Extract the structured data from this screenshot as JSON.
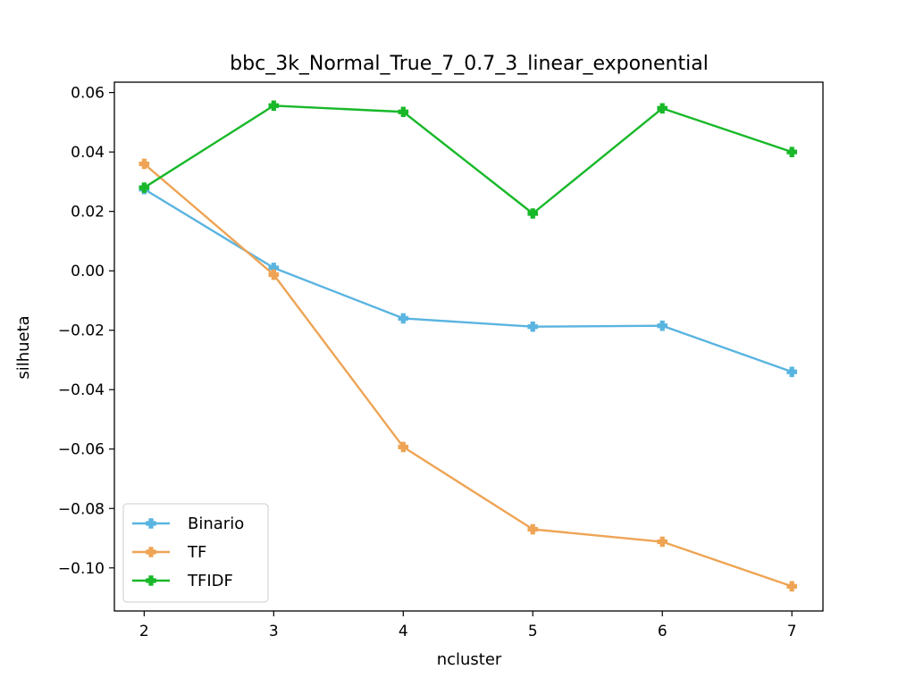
{
  "chart_data": {
    "type": "line",
    "title": "bbc_3k_Normal_True_7_0.7_3_linear_exponential",
    "xlabel": "ncluster",
    "ylabel": "silhueta",
    "x": [
      2,
      3,
      4,
      5,
      6,
      7
    ],
    "xlim": [
      1.77,
      7.24
    ],
    "ylim": [
      -0.1145,
      0.0635
    ],
    "x_ticks": [
      2,
      3,
      4,
      5,
      6,
      7
    ],
    "x_tick_labels": [
      "2",
      "3",
      "4",
      "5",
      "6",
      "7"
    ],
    "y_ticks": [
      0.06,
      0.04,
      0.02,
      0.0,
      -0.02,
      -0.04,
      -0.06,
      -0.08,
      -0.1
    ],
    "y_tick_labels": [
      "0.06",
      "0.04",
      "0.02",
      "0.00",
      "−0.02",
      "−0.04",
      "−0.06",
      "−0.08",
      "−0.10"
    ],
    "grid": false,
    "legend_position": "lower-left",
    "series": [
      {
        "name": "Binario",
        "color": "#5ab4e0",
        "values": [
          0.0275,
          0.001,
          -0.016,
          -0.0188,
          -0.0185,
          -0.034
        ]
      },
      {
        "name": "TF",
        "color": "#eea454",
        "values": [
          0.036,
          -0.0013,
          -0.0593,
          -0.087,
          -0.0912,
          -0.1062
        ]
      },
      {
        "name": "TFIDF",
        "color": "#18b829",
        "values": [
          0.028,
          0.0556,
          0.0535,
          0.0193,
          0.0547,
          0.04
        ]
      }
    ]
  }
}
